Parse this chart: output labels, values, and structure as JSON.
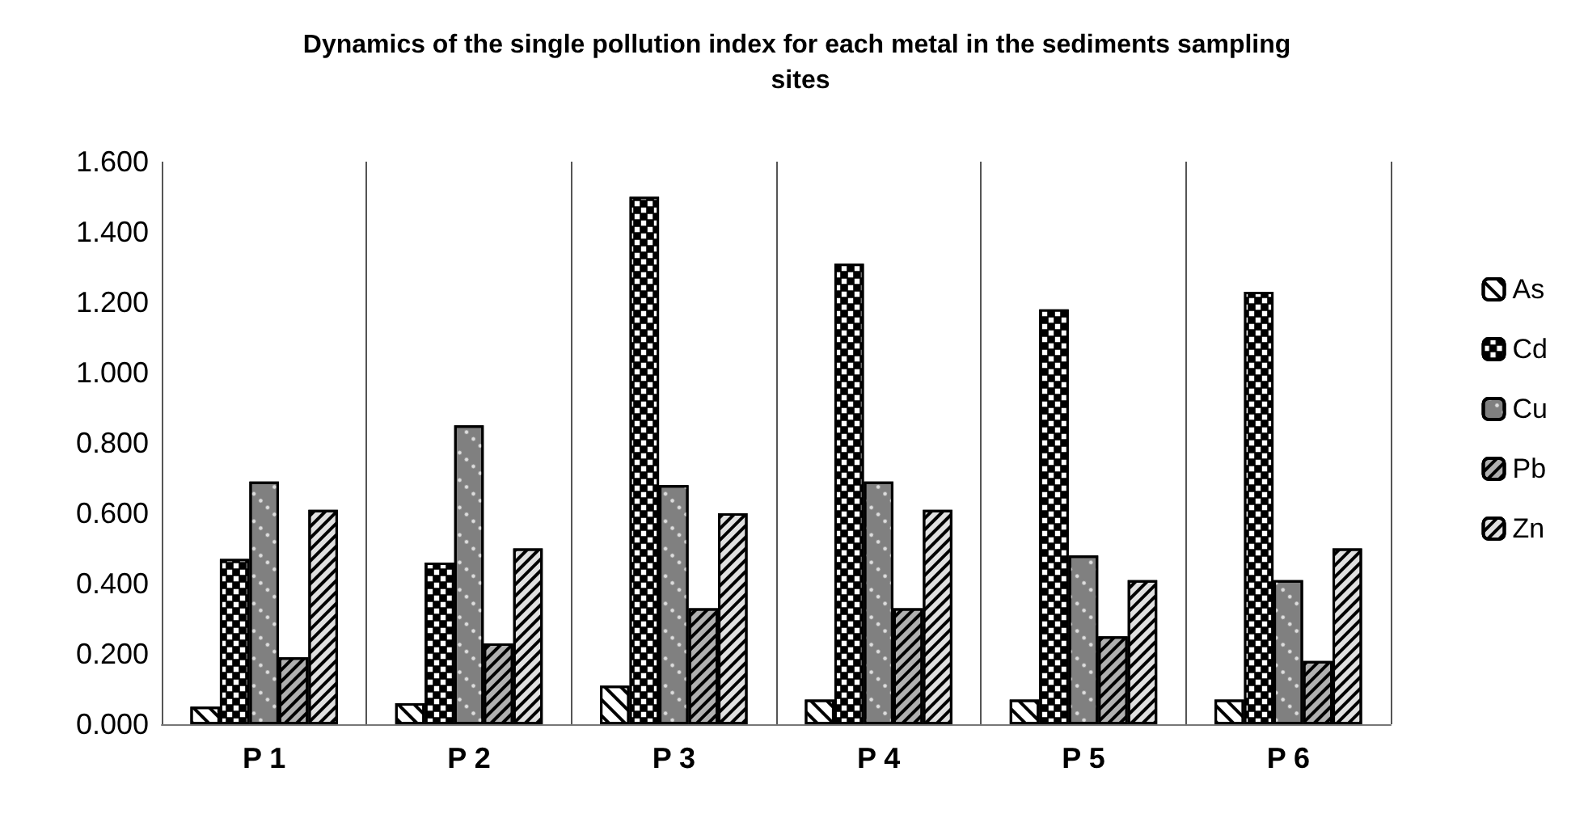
{
  "chart_data": {
    "type": "bar",
    "title": "Dynamics of the single pollution index for each metal in the sediments sampling sites",
    "categories": [
      "P 1",
      "P 2",
      "P 3",
      "P 4",
      "P 5",
      "P 6"
    ],
    "series": [
      {
        "name": "As",
        "color": "#ffffff",
        "values": [
          0.05,
          0.06,
          0.11,
          0.07,
          0.07,
          0.07
        ]
      },
      {
        "name": "Cd",
        "color": "#000000",
        "values": [
          0.47,
          0.46,
          1.5,
          1.31,
          1.18,
          1.23
        ]
      },
      {
        "name": "Cu",
        "color": "#808080",
        "values": [
          0.69,
          0.85,
          0.68,
          0.69,
          0.48,
          0.41
        ]
      },
      {
        "name": "Pb",
        "color": "#b0b0b0",
        "values": [
          0.19,
          0.23,
          0.33,
          0.33,
          0.25,
          0.18
        ]
      },
      {
        "name": "Zn",
        "color": "#e0e0e0",
        "values": [
          0.61,
          0.5,
          0.6,
          0.61,
          0.41,
          0.5
        ]
      }
    ],
    "ylim": [
      0,
      1.6
    ],
    "yticks": [
      {
        "value": 0,
        "label": "0.000"
      },
      {
        "value": 0.2,
        "label": "0.200"
      },
      {
        "value": 0.4,
        "label": "0.400"
      },
      {
        "value": 0.6,
        "label": "0.600"
      },
      {
        "value": 0.8,
        "label": "0.800"
      },
      {
        "value": 1,
        "label": "1.000"
      },
      {
        "value": 1.2,
        "label": "1.200"
      },
      {
        "value": 1.4,
        "label": "1.400"
      },
      {
        "value": 1.6,
        "label": "1.600"
      }
    ],
    "grid": "x",
    "legend": "right"
  }
}
